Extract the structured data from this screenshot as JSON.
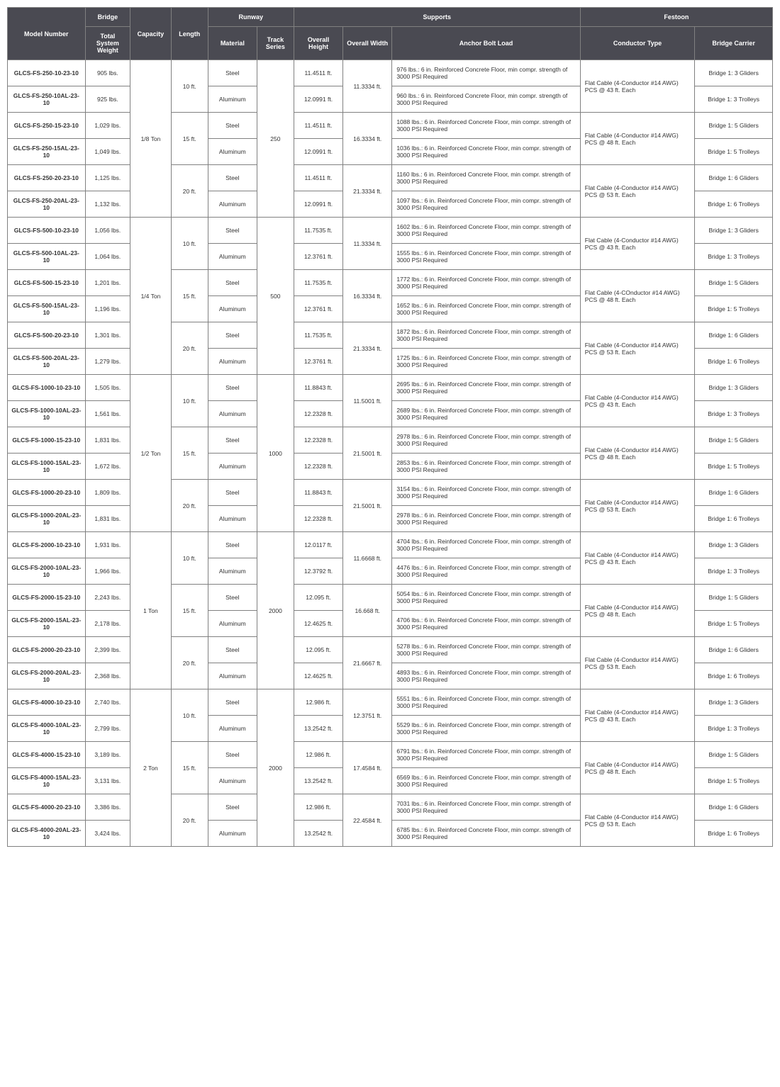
{
  "headers": {
    "top": {
      "model": "Model Number",
      "bridge": "Bridge",
      "runway": "Runway",
      "supports": "Supports",
      "festoon": "Festoon"
    },
    "sub": {
      "weight": "Total System Weight",
      "capacity": "Capacity",
      "length": "Length",
      "material": "Material",
      "track": "Track Series",
      "height": "Overall Height",
      "width": "Overall Width",
      "anchor": "Anchor Bolt Load",
      "conductor": "Conductor Type",
      "carrier": "Bridge Carrier"
    }
  },
  "groups": [
    {
      "capacity": "1/8 Ton",
      "track": "250",
      "pairs": [
        {
          "length": "10 ft.",
          "width": "11.3334 ft.",
          "conductor": "Flat Cable (4-Conductor #14 AWG) PCS @ 43 ft. Each",
          "rows": [
            {
              "model": "GLCS-FS-250-10-23-10",
              "weight": "905 lbs.",
              "material": "Steel",
              "height": "11.4511 ft.",
              "anchor": "976 lbs.: 6 in. Reinforced Concrete Floor, min compr. strength of 3000 PSI Required",
              "carrier": "Bridge 1: 3 Gliders"
            },
            {
              "model": "GLCS-FS-250-10AL-23-10",
              "weight": "925 lbs.",
              "material": "Aluminum",
              "height": "12.0991 ft.",
              "anchor": "960 lbs.: 6 in. Reinforced Concrete Floor, min compr. strength of 3000 PSI Required",
              "carrier": "Bridge 1: 3 Trolleys"
            }
          ]
        },
        {
          "length": "15 ft.",
          "width": "16.3334 ft.",
          "conductor": "Flat Cable (4-Conductor #14 AWG) PCS @ 48 ft. Each",
          "rows": [
            {
              "model": "GLCS-FS-250-15-23-10",
              "weight": "1,029 lbs.",
              "material": "Steel",
              "height": "11.4511 ft.",
              "anchor": "1088 lbs.: 6 in. Reinforced Concrete Floor, min compr. strength of 3000 PSI Required",
              "carrier": "Bridge 1: 5 Gliders"
            },
            {
              "model": "GLCS-FS-250-15AL-23-10",
              "weight": "1,049 lbs.",
              "material": "Aluminum",
              "height": "12.0991 ft.",
              "anchor": "1036 lbs.: 6 in. Reinforced Concrete Floor, min compr. strength of 3000 PSI Required",
              "carrier": "Bridge 1: 5 Trolleys"
            }
          ]
        },
        {
          "length": "20 ft.",
          "width": "21.3334 ft.",
          "conductor": "Flat Cable (4-Conductor #14 AWG) PCS @ 53 ft. Each",
          "rows": [
            {
              "model": "GLCS-FS-250-20-23-10",
              "weight": "1,125 lbs.",
              "material": "Steel",
              "height": "11.4511 ft.",
              "anchor": "1160 lbs.: 6 in. Reinforced Concrete Floor, min compr. strength of 3000 PSI Required",
              "carrier": "Bridge 1: 6 Gliders"
            },
            {
              "model": "GLCS-FS-250-20AL-23-10",
              "weight": "1,132 lbs.",
              "material": "Aluminum",
              "height": "12.0991 ft.",
              "anchor": "1097 lbs.: 6 in. Reinforced Concrete Floor, min compr. strength of 3000 PSI Required",
              "carrier": "Bridge 1: 6 Trolleys"
            }
          ]
        }
      ]
    },
    {
      "capacity": "1/4 Ton",
      "track": "500",
      "pairs": [
        {
          "length": "10 ft.",
          "width": "11.3334 ft.",
          "conductor": "Flat Cable (4-Conductor #14 AWG) PCS @ 43 ft. Each",
          "rows": [
            {
              "model": "GLCS-FS-500-10-23-10",
              "weight": "1,056 lbs.",
              "material": "Steel",
              "height": "11.7535 ft.",
              "anchor": "1602 lbs.: 6 in. Reinforced Concrete Floor, min compr. strength of 3000 PSI Required",
              "carrier": "Bridge 1: 3 Gliders"
            },
            {
              "model": "GLCS-FS-500-10AL-23-10",
              "weight": "1,064 lbs.",
              "material": "Aluminum",
              "height": "12.3761 ft.",
              "anchor": "1555 lbs.: 6 in. Reinforced Concrete Floor, min compr. strength of 3000 PSI Required",
              "carrier": "Bridge 1: 3 Trolleys"
            }
          ]
        },
        {
          "length": "15 ft.",
          "width": "16.3334 ft.",
          "conductor": "Flat Cable (4-COnductor #14 AWG) PCS @ 48 ft. Each",
          "rows": [
            {
              "model": "GLCS-FS-500-15-23-10",
              "weight": "1,201 lbs.",
              "material": "Steel",
              "height": "11.7535 ft.",
              "anchor": "1772 lbs.: 6 in. Reinforced Concrete Floor, min compr. strength of 3000 PSI Required",
              "carrier": "Bridge 1: 5 Gliders"
            },
            {
              "model": "GLCS-FS-500-15AL-23-10",
              "weight": "1,196 lbs.",
              "material": "Aluminum",
              "height": "12.3761 ft.",
              "anchor": "1652 lbs.: 6 in. Reinforced Concrete Floor, min compr. strength of 3000 PSI Required",
              "carrier": "Bridge 1: 5 Trolleys"
            }
          ]
        },
        {
          "length": "20 ft.",
          "width": "21.3334 ft.",
          "conductor": "Flat Cable (4-Conductor #14 AWG) PCS @ 53 ft. Each",
          "rows": [
            {
              "model": "GLCS-FS-500-20-23-10",
              "weight": "1,301 lbs.",
              "material": "Steel",
              "height": "11.7535 ft.",
              "anchor": "1872 lbs.: 6 in. Reinforced Concrete Floor, min compr. strength of 3000 PSI Required",
              "carrier": "Bridge 1: 6 Gliders"
            },
            {
              "model": "GLCS-FS-500-20AL-23-10",
              "weight": "1,279 lbs.",
              "material": "Aluminum",
              "height": "12.3761 ft.",
              "anchor": "1725 lbs.: 6 in. Reinforced Concrete Floor, min compr. strength of 3000 PSI Required",
              "carrier": "Bridge 1: 6 Trolleys"
            }
          ]
        }
      ]
    },
    {
      "capacity": "1/2 Ton",
      "track": "1000",
      "pairs": [
        {
          "length": "10 ft.",
          "width": "11.5001 ft.",
          "conductor": "Flat Cable (4-Conductor #14 AWG) PCS @ 43 ft. Each",
          "rows": [
            {
              "model": "GLCS-FS-1000-10-23-10",
              "weight": "1,505 lbs.",
              "material": "Steel",
              "height": "11.8843 ft.",
              "anchor": "2695 lbs.: 6 in. Reinforced Concrete Floor, min compr. strength of 3000 PSI Required",
              "carrier": "Bridge 1: 3 Gliders"
            },
            {
              "model": "GLCS-FS-1000-10AL-23-10",
              "weight": "1,561 lbs.",
              "material": "Aluminum",
              "height": "12.2328 ft.",
              "anchor": "2689 lbs.: 6 in. Reinforced Concrete Floor, min compr. strength of 3000 PSI Required",
              "carrier": "Bridge 1: 3 Trolleys"
            }
          ]
        },
        {
          "length": "15 ft.",
          "width": "21.5001 ft.",
          "conductor": "Flat Cable (4-Conductor #14 AWG) PCS @ 48 ft. Each",
          "rows": [
            {
              "model": "GLCS-FS-1000-15-23-10",
              "weight": "1,831 lbs.",
              "material": "Steel",
              "height": "12.2328 ft.",
              "anchor": "2978 lbs.: 6 in. Reinforced Concrete Floor, min compr. strength of 3000 PSI Required",
              "carrier": "Bridge 1: 5 Gliders"
            },
            {
              "model": "GLCS-FS-1000-15AL-23-10",
              "weight": "1,672 lbs.",
              "material": "Aluminum",
              "height": "12.2328 ft.",
              "anchor": "2853 lbs.: 6 in. Reinforced Concrete Floor, min compr. strength of 3000 PSI Required",
              "carrier": "Bridge 1: 5 Trolleys"
            }
          ]
        },
        {
          "length": "20 ft.",
          "width": "21.5001 ft.",
          "conductor": "Flat Cable (4-Conductor #14 AWG) PCS @ 53 ft. Each",
          "rows": [
            {
              "model": "GLCS-FS-1000-20-23-10",
              "weight": "1,809 lbs.",
              "material": "Steel",
              "height": "11.8843 ft.",
              "anchor": "3154 lbs.: 6 in. Reinforced Concrete Floor, min compr. strength of 3000 PSI Required",
              "carrier": "Bridge 1: 6 Gliders"
            },
            {
              "model": "GLCS-FS-1000-20AL-23-10",
              "weight": "1,831 lbs.",
              "material": "Aluminum",
              "height": "12.2328 ft.",
              "anchor": "2978 lbs.: 6 in. Reinforced Concrete Floor, min compr. strength of 3000 PSI Required",
              "carrier": "Bridge 1: 6 Trolleys"
            }
          ]
        }
      ]
    },
    {
      "capacity": "1 Ton",
      "track": "2000",
      "pairs": [
        {
          "length": "10 ft.",
          "width": "11.6668 ft.",
          "conductor": "Flat Cable (4-Conductor #14 AWG) PCS @ 43 ft. Each",
          "rows": [
            {
              "model": "GLCS-FS-2000-10-23-10",
              "weight": "1,931 lbs.",
              "material": "Steel",
              "height": "12.0117 ft.",
              "anchor": "4704 lbs.: 6 in. Reinforced Concrete Floor, min compr. strength of 3000 PSI Required",
              "carrier": "Bridge 1: 3 Gliders"
            },
            {
              "model": "GLCS-FS-2000-10AL-23-10",
              "weight": "1,966 lbs.",
              "material": "Aluminum",
              "height": "12.3792 ft.",
              "anchor": "4476 lbs.: 6 in. Reinforced Concrete Floor, min compr. strength of 3000 PSI Required",
              "carrier": "Bridge 1: 3 Trolleys"
            }
          ]
        },
        {
          "length": "15 ft.",
          "width": "16.668 ft.",
          "conductor": "Flat Cable (4-Conductor #14 AWG) PCS @ 48 ft. Each",
          "rows": [
            {
              "model": "GLCS-FS-2000-15-23-10",
              "weight": "2,243 lbs.",
              "material": "Steel",
              "height": "12.095 ft.",
              "anchor": "5054 lbs.: 6 in. Reinforced Concrete Floor, min compr. strength of 3000 PSI Required",
              "carrier": "Bridge 1: 5 Gliders"
            },
            {
              "model": "GLCS-FS-2000-15AL-23-10",
              "weight": "2,178 lbs.",
              "material": "Aluminum",
              "height": "12.4625 ft.",
              "anchor": "4706 lbs.: 6 in. Reinforced Concrete Floor, min compr. strength of 3000 PSI Required",
              "carrier": "Bridge 1: 5 Trolleys"
            }
          ]
        },
        {
          "length": "20 ft.",
          "width": "21.6667 ft.",
          "conductor": "Flat Cable (4-Conductor #14 AWG) PCS @ 53 ft. Each",
          "rows": [
            {
              "model": "GLCS-FS-2000-20-23-10",
              "weight": "2,399 lbs.",
              "material": "Steel",
              "height": "12.095 ft.",
              "anchor": "5278 lbs.: 6 in. Reinforced Concrete Floor, min compr. strength of 3000 PSI Required",
              "carrier": "Bridge 1: 6 Gliders"
            },
            {
              "model": "GLCS-FS-2000-20AL-23-10",
              "weight": "2,368 lbs.",
              "material": "Aluminum",
              "height": "12.4625 ft.",
              "anchor": "4893 lbs.: 6 in. Reinforced Concrete Floor, min compr. strength of 3000 PSI Required",
              "carrier": "Bridge 1: 6 Trolleys"
            }
          ]
        }
      ]
    },
    {
      "capacity": "2 Ton",
      "track": "2000",
      "pairs": [
        {
          "length": "10 ft.",
          "width": "12.3751 ft.",
          "conductor": "Flat Cable (4-Conductor #14 AWG) PCS @ 43 ft. Each",
          "rows": [
            {
              "model": "GLCS-FS-4000-10-23-10",
              "weight": "2,740 lbs.",
              "material": "Steel",
              "height": "12.986 ft.",
              "anchor": "5551 lbs.: 6 in. Reinforced Concrete Floor, min compr. strength of 3000 PSI Required",
              "carrier": "Bridge 1: 3 Gliders"
            },
            {
              "model": "GLCS-FS-4000-10AL-23-10",
              "weight": "2,799 lbs.",
              "material": "Aluminum",
              "height": "13.2542 ft.",
              "anchor": "5529 lbs.: 6 in. Reinforced Concrete Floor, min compr. strength of 3000 PSI Required",
              "carrier": "Bridge 1: 3 Trolleys"
            }
          ]
        },
        {
          "length": "15 ft.",
          "width": "17.4584 ft.",
          "conductor": "Flat Cable (4-Conductor #14 AWG) PCS @ 48 ft. Each",
          "rows": [
            {
              "model": "GLCS-FS-4000-15-23-10",
              "weight": "3,189 lbs.",
              "material": "Steel",
              "height": "12.986 ft.",
              "anchor": "6791 lbs.: 6 in. Reinforced Concrete Floor, min compr. strength of 3000 PSI Required",
              "carrier": "Bridge 1: 5 Gliders"
            },
            {
              "model": "GLCS-FS-4000-15AL-23-10",
              "weight": "3,131 lbs.",
              "material": "Aluminum",
              "height": "13.2542 ft.",
              "anchor": "6569 lbs.: 6 in. Reinforced Concrete Floor, min compr. strength of 3000 PSI Required",
              "carrier": "Bridge 1: 5 Trolleys"
            }
          ]
        },
        {
          "length": "20 ft.",
          "width": "22.4584 ft.",
          "conductor": "Flat Cable (4-Conductor #14 AWG) PCS @ 53 ft. Each",
          "rows": [
            {
              "model": "GLCS-FS-4000-20-23-10",
              "weight": "3,386 lbs.",
              "material": "Steel",
              "height": "12.986 ft.",
              "anchor": "7031 lbs.: 6 in. Reinforced Concrete Floor, min compr. strength of 3000 PSI Required",
              "carrier": "Bridge 1: 6 Gliders"
            },
            {
              "model": "GLCS-FS-4000-20AL-23-10",
              "weight": "3,424 lbs.",
              "material": "Aluminum",
              "height": "13.2542 ft.",
              "anchor": "6785 lbs.: 6 in. Reinforced Concrete Floor, min compr. strength of 3000 PSI Required",
              "carrier": "Bridge 1: 6 Trolleys"
            }
          ]
        }
      ]
    }
  ]
}
